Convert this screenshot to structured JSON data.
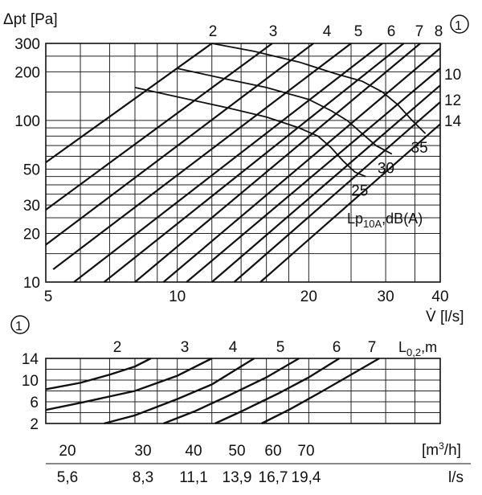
{
  "chart_data": [
    {
      "type": "line",
      "ylabel": "Δpt [Pa]",
      "xlabel": "V̇ [l/s]",
      "x_scale": "log",
      "y_scale": "log",
      "xlim": [
        5,
        40
      ],
      "ylim": [
        10,
        300
      ],
      "x_ticks": [
        5,
        10,
        20,
        30,
        40
      ],
      "y_ticks": [
        10,
        20,
        30,
        50,
        100,
        200,
        300
      ],
      "x_grid": [
        5,
        6,
        7,
        8,
        9,
        10,
        12,
        14,
        16,
        18,
        20,
        25,
        30,
        35,
        40
      ],
      "y_grid": [
        10,
        15,
        20,
        25,
        30,
        35,
        40,
        45,
        50,
        60,
        70,
        80,
        90,
        100,
        150,
        200,
        250,
        300
      ],
      "marker": "①",
      "diagonal_labels": [
        "2",
        "3",
        "4",
        "5",
        "6",
        "7",
        "8",
        "10",
        "12",
        "14"
      ],
      "diagonal_lines": [
        {
          "label": "",
          "points": [
            [
              5,
              55
            ],
            [
              12,
              300
            ]
          ]
        },
        {
          "label": "",
          "points": [
            [
              5,
              28
            ],
            [
              16.5,
              300
            ]
          ]
        },
        {
          "label": "",
          "points": [
            [
              5,
              17
            ],
            [
              20.5,
              300
            ]
          ]
        },
        {
          "label": "",
          "points": [
            [
              5.2,
              12
            ],
            [
              25,
              300
            ]
          ]
        },
        {
          "label": "",
          "points": [
            [
              5.8,
              10
            ],
            [
              29.5,
              300
            ]
          ]
        },
        {
          "label": "2",
          "points": [
            [
              6.8,
              10
            ],
            [
              33,
              300
            ]
          ]
        },
        {
          "label": "3",
          "points": [
            [
              8,
              10
            ],
            [
              36,
              300
            ]
          ]
        },
        {
          "label": "4",
          "points": [
            [
              9.3,
              10
            ],
            [
              40,
              280
            ]
          ]
        },
        {
          "label": "5",
          "points": [
            [
              10.5,
              10
            ],
            [
              40,
              210
            ]
          ]
        },
        {
          "label": "6",
          "points": [
            [
              12,
              10
            ],
            [
              40,
              165
            ]
          ]
        },
        {
          "label": "7",
          "points": [
            [
              13.5,
              10
            ],
            [
              40,
              130
            ]
          ]
        },
        {
          "label": "8",
          "points": [
            [
              15.5,
              10
            ],
            [
              40,
              95
            ]
          ]
        }
      ],
      "noise_curves_label": "Lp10A,dB(A)",
      "noise_curves": [
        {
          "label": "25",
          "points": [
            [
              8,
              160
            ],
            [
              10,
              140
            ],
            [
              13,
              120
            ],
            [
              16,
              105
            ],
            [
              19,
              90
            ],
            [
              21,
              80
            ],
            [
              22.5,
              68
            ],
            [
              24,
              56
            ],
            [
              25.5,
              48
            ],
            [
              27,
              45
            ]
          ]
        },
        {
          "label": "30",
          "points": [
            [
              10,
              210
            ],
            [
              13,
              180
            ],
            [
              16,
              160
            ],
            [
              20,
              135
            ],
            [
              22.5,
              115
            ],
            [
              24.5,
              100
            ],
            [
              26.5,
              83
            ],
            [
              28.5,
              70
            ],
            [
              31,
              62
            ]
          ]
        },
        {
          "label": "35",
          "points": [
            [
              12,
              300
            ],
            [
              15,
              268
            ],
            [
              19,
              230
            ],
            [
              23,
              195
            ],
            [
              26.5,
              175
            ],
            [
              29.5,
              150
            ],
            [
              32,
              125
            ],
            [
              34.5,
              100
            ],
            [
              37,
              83
            ]
          ]
        }
      ]
    },
    {
      "type": "line",
      "marker": "①",
      "ylabel": "",
      "legend_label": "L0,2,m",
      "ylim": [
        2,
        14
      ],
      "y_ticks": [
        2,
        6,
        10,
        14
      ],
      "curve_labels": [
        "2",
        "3",
        "4",
        "5",
        "6",
        "7"
      ],
      "x_bottom_unit_1": "[m³/h]",
      "x_bottom_unit_2": "l/s",
      "x_ticks_m3h": [
        "20",
        "30",
        "40",
        "50",
        "60",
        "70"
      ],
      "x_ticks_ls": [
        "5,6",
        "8,3",
        "11,1",
        "13,9",
        "16,7",
        "19,4"
      ],
      "x_grid_ls": [
        5,
        6,
        7,
        8,
        9,
        10,
        12,
        14,
        16,
        18,
        20,
        25,
        30,
        35,
        40
      ],
      "length_curves": [
        {
          "label": "2",
          "points": [
            [
              5,
              8.3
            ],
            [
              6,
              9.5
            ],
            [
              7,
              11
            ],
            [
              8,
              12.5
            ],
            [
              8.7,
              14
            ]
          ]
        },
        {
          "label": "3",
          "points": [
            [
              5,
              4.5
            ],
            [
              6,
              5.8
            ],
            [
              8,
              8
            ],
            [
              10,
              10.8
            ],
            [
              12,
              14
            ]
          ]
        },
        {
          "label": "4",
          "points": [
            [
              6.8,
              2
            ],
            [
              8,
              3.5
            ],
            [
              10,
              6.5
            ],
            [
              12,
              9.2
            ],
            [
              15,
              14
            ]
          ]
        },
        {
          "label": "5",
          "points": [
            [
              9.3,
              2
            ],
            [
              11,
              4.3
            ],
            [
              13,
              7
            ],
            [
              16,
              10.5
            ],
            [
              19,
              14
            ]
          ]
        },
        {
          "label": "6",
          "points": [
            [
              12.2,
              2
            ],
            [
              14,
              4.2
            ],
            [
              17,
              7.5
            ],
            [
              20,
              10.5
            ],
            [
              23.5,
              14
            ]
          ]
        },
        {
          "label": "7",
          "points": [
            [
              15.6,
              2
            ],
            [
              18,
              4.5
            ],
            [
              21,
              7.5
            ],
            [
              25,
              11
            ],
            [
              29,
              14
            ]
          ]
        }
      ]
    }
  ]
}
